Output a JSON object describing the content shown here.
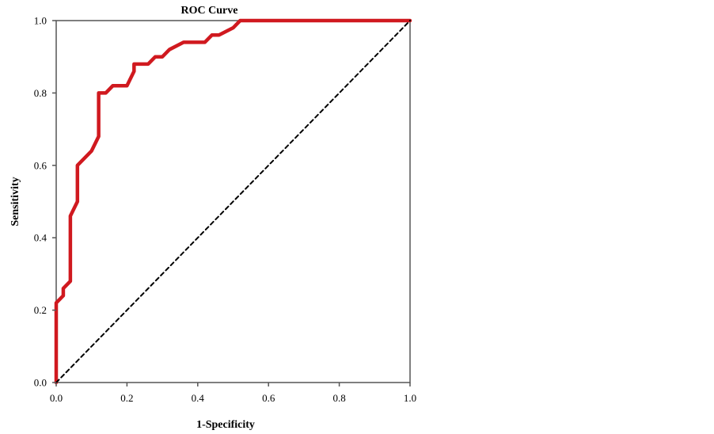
{
  "chart_data": {
    "type": "line",
    "title": "ROC Curve",
    "xlabel": "1-Specificity",
    "ylabel": "Sensitivity",
    "xlim": [
      0,
      1
    ],
    "ylim": [
      0,
      1
    ],
    "xticks": [
      "0.0",
      "0.2",
      "0.4",
      "0.6",
      "0.8",
      "1.0"
    ],
    "yticks": [
      "0.0",
      "0.2",
      "0.4",
      "0.6",
      "0.8",
      "1.0"
    ],
    "grid": false,
    "legend": "none",
    "series": [
      {
        "color": "#d0191f",
        "style": "solid",
        "x": [
          0.0,
          0.0,
          0.02,
          0.02,
          0.04,
          0.04,
          0.06,
          0.06,
          0.08,
          0.1,
          0.12,
          0.12,
          0.14,
          0.16,
          0.2,
          0.22,
          0.22,
          0.26,
          0.28,
          0.3,
          0.32,
          0.36,
          0.42,
          0.44,
          0.46,
          0.5,
          0.52,
          0.6,
          0.8,
          1.0
        ],
        "y": [
          0.0,
          0.22,
          0.24,
          0.26,
          0.28,
          0.46,
          0.5,
          0.6,
          0.62,
          0.64,
          0.68,
          0.8,
          0.8,
          0.82,
          0.82,
          0.86,
          0.88,
          0.88,
          0.9,
          0.9,
          0.92,
          0.94,
          0.94,
          0.96,
          0.96,
          0.98,
          1.0,
          1.0,
          1.0,
          1.0
        ]
      },
      {
        "color": "#000000",
        "style": "dashed",
        "x": [
          0,
          1
        ],
        "y": [
          0,
          1
        ]
      }
    ]
  }
}
